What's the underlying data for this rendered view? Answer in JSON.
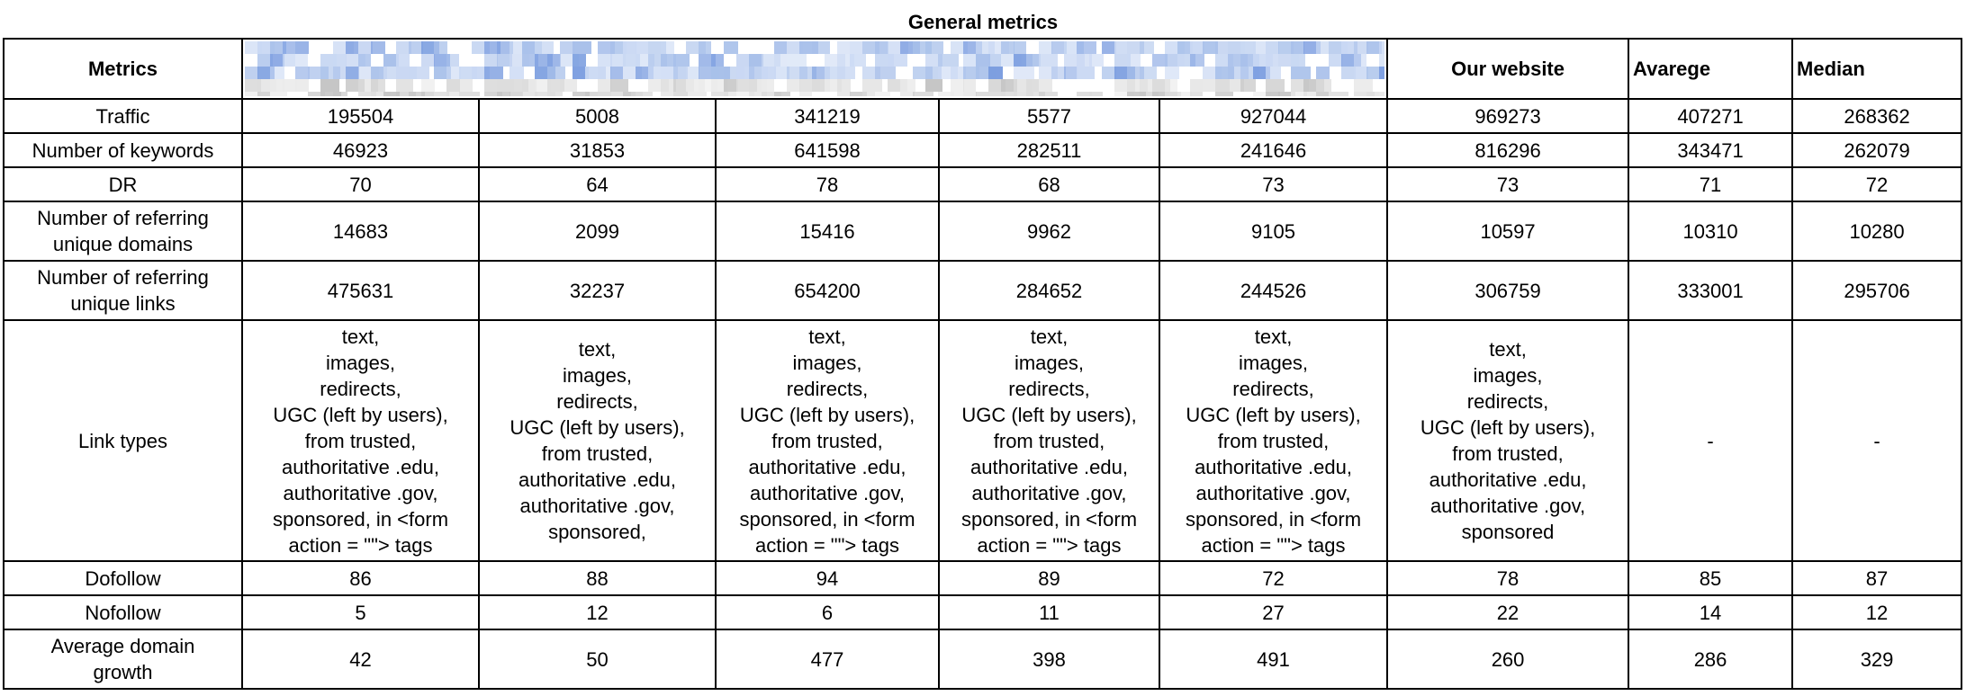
{
  "title": "General metrics",
  "header": {
    "metrics": "Metrics",
    "our_website": "Our website",
    "average": "Avarege",
    "median": "Median"
  },
  "colors": {
    "blur_blue_light": "#c9d8f3",
    "blur_blue": "#a8c0ea",
    "blur_blue_dark": "#7c9ee0",
    "blur_gray": "#dcdcdc",
    "blur_gray_dark": "#c4c4c4"
  },
  "rows": [
    {
      "metric": "Traffic",
      "values": [
        "195504",
        "5008",
        "341219",
        "5577",
        "927044",
        "969273"
      ],
      "average": "407271",
      "median": "268362"
    },
    {
      "metric": "Number of keywords",
      "values": [
        "46923",
        "31853",
        "641598",
        "282511",
        "241646",
        "816296"
      ],
      "average": "343471",
      "median": "262079"
    },
    {
      "metric": "DR",
      "values": [
        "70",
        "64",
        "78",
        "68",
        "73",
        "73"
      ],
      "average": "71",
      "median": "72"
    },
    {
      "metric": "Number of referring\nunique domains",
      "values": [
        "14683",
        "2099",
        "15416",
        "9962",
        "9105",
        "10597"
      ],
      "average": "10310",
      "median": "10280"
    },
    {
      "metric": "Number of referring\nunique links",
      "values": [
        "475631",
        "32237",
        "654200",
        "284652",
        "244526",
        "306759"
      ],
      "average": "333001",
      "median": "295706"
    },
    {
      "metric": "Link types",
      "values": [
        "text,\nimages,\nredirects,\nUGC (left by users),\nfrom trusted,\nauthoritative .edu,\nauthoritative .gov,\nsponsored, in <form\naction = \"\"> tags",
        "text,\nimages,\nredirects,\nUGC (left by users),\nfrom trusted,\nauthoritative .edu,\nauthoritative .gov,\nsponsored,",
        "text,\nimages,\nredirects,\nUGC (left by users),\nfrom trusted,\nauthoritative .edu,\nauthoritative .gov,\nsponsored, in <form\naction = \"\"> tags",
        "text,\nimages,\nredirects,\nUGC (left by users),\nfrom trusted,\nauthoritative .edu,\nauthoritative .gov,\nsponsored, in <form\naction = \"\"> tags",
        "text,\nimages,\nredirects,\nUGC (left by users),\nfrom trusted,\nauthoritative .edu,\nauthoritative .gov,\nsponsored, in <form\naction = \"\"> tags",
        "text,\nimages,\nredirects,\nUGC (left by users),\nfrom trusted,\nauthoritative .edu,\nauthoritative .gov,\nsponsored"
      ],
      "average": "-",
      "median": "-"
    },
    {
      "metric": "Dofollow",
      "values": [
        "86",
        "88",
        "94",
        "89",
        "72",
        "78"
      ],
      "average": "85",
      "median": "87"
    },
    {
      "metric": "Nofollow",
      "values": [
        "5",
        "12",
        "6",
        "11",
        "27",
        "22"
      ],
      "average": "14",
      "median": "12"
    },
    {
      "metric": "Average domain\ngrowth",
      "values": [
        "42",
        "50",
        "477",
        "398",
        "491",
        "260"
      ],
      "average": "286",
      "median": "329"
    }
  ]
}
